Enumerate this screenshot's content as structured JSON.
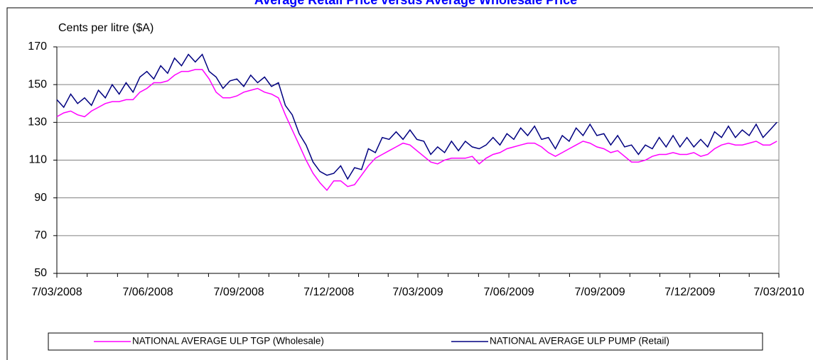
{
  "chart_data": {
    "type": "line",
    "title": "Average Retail Price versus Average Wholesale Price",
    "ylabel": "Cents per litre ($A)",
    "x": [
      "2008-03-07",
      "2008-03-14",
      "2008-03-21",
      "2008-03-28",
      "2008-04-04",
      "2008-04-11",
      "2008-04-18",
      "2008-04-25",
      "2008-05-02",
      "2008-05-09",
      "2008-05-16",
      "2008-05-23",
      "2008-05-30",
      "2008-06-06",
      "2008-06-13",
      "2008-06-20",
      "2008-06-27",
      "2008-07-04",
      "2008-07-11",
      "2008-07-18",
      "2008-07-25",
      "2008-08-01",
      "2008-08-08",
      "2008-08-15",
      "2008-08-22",
      "2008-08-29",
      "2008-09-05",
      "2008-09-12",
      "2008-09-19",
      "2008-09-26",
      "2008-10-03",
      "2008-10-10",
      "2008-10-17",
      "2008-10-24",
      "2008-10-31",
      "2008-11-07",
      "2008-11-14",
      "2008-11-21",
      "2008-11-28",
      "2008-12-05",
      "2008-12-12",
      "2008-12-19",
      "2008-12-26",
      "2009-01-02",
      "2009-01-09",
      "2009-01-16",
      "2009-01-23",
      "2009-01-30",
      "2009-02-06",
      "2009-02-13",
      "2009-02-20",
      "2009-02-27",
      "2009-03-06",
      "2009-03-13",
      "2009-03-20",
      "2009-03-27",
      "2009-04-03",
      "2009-04-10",
      "2009-04-17",
      "2009-04-24",
      "2009-05-01",
      "2009-05-08",
      "2009-05-15",
      "2009-05-22",
      "2009-05-29",
      "2009-06-05",
      "2009-06-12",
      "2009-06-19",
      "2009-06-26",
      "2009-07-03",
      "2009-07-10",
      "2009-07-17",
      "2009-07-24",
      "2009-07-31",
      "2009-08-07",
      "2009-08-14",
      "2009-08-21",
      "2009-08-28",
      "2009-09-04",
      "2009-09-11",
      "2009-09-18",
      "2009-09-25",
      "2009-10-02",
      "2009-10-09",
      "2009-10-16",
      "2009-10-23",
      "2009-10-30",
      "2009-11-06",
      "2009-11-13",
      "2009-11-20",
      "2009-11-27",
      "2009-12-04",
      "2009-12-11",
      "2009-12-18",
      "2009-12-25",
      "2010-01-01",
      "2010-01-08",
      "2010-01-15",
      "2010-01-22",
      "2010-01-29",
      "2010-02-05",
      "2010-02-12",
      "2010-02-19",
      "2010-02-26",
      "2010-03-05"
    ],
    "series": [
      {
        "name": "NATIONAL AVERAGE ULP TGP (Wholesale)",
        "color": "#ff00ff",
        "values": [
          133,
          135,
          136,
          134,
          133,
          136,
          138,
          140,
          141,
          141,
          142,
          142,
          146,
          148,
          151,
          151,
          152,
          155,
          157,
          157,
          158,
          158,
          153,
          146,
          143,
          143,
          144,
          146,
          147,
          148,
          146,
          145,
          143,
          134,
          126,
          118,
          110,
          103,
          98,
          94,
          99,
          99,
          96,
          97,
          102,
          107,
          111,
          113,
          115,
          117,
          119,
          118,
          115,
          112,
          109,
          108,
          110,
          111,
          111,
          111,
          112,
          108,
          111,
          113,
          114,
          116,
          117,
          118,
          119,
          119,
          117,
          114,
          112,
          114,
          116,
          118,
          120,
          119,
          117,
          116,
          114,
          115,
          112,
          109,
          109,
          110,
          112,
          113,
          113,
          114,
          113,
          113,
          114,
          112,
          113,
          116,
          118,
          119,
          118,
          118,
          119,
          120,
          118,
          118,
          120
        ]
      },
      {
        "name": "NATIONAL AVERAGE ULP PUMP (Retail)",
        "color": "#000080",
        "values": [
          142,
          138,
          145,
          140,
          143,
          139,
          147,
          143,
          150,
          145,
          151,
          146,
          154,
          157,
          153,
          160,
          156,
          164,
          160,
          166,
          162,
          166,
          157,
          154,
          148,
          152,
          153,
          149,
          155,
          151,
          154,
          149,
          151,
          139,
          134,
          124,
          118,
          109,
          104,
          102,
          103,
          107,
          100,
          106,
          105,
          116,
          114,
          122,
          121,
          125,
          121,
          126,
          121,
          120,
          113,
          117,
          114,
          120,
          115,
          120,
          117,
          116,
          118,
          122,
          118,
          124,
          121,
          127,
          123,
          128,
          121,
          122,
          116,
          123,
          120,
          127,
          123,
          129,
          123,
          124,
          118,
          123,
          117,
          118,
          113,
          118,
          116,
          122,
          117,
          123,
          117,
          122,
          117,
          121,
          117,
          125,
          122,
          128,
          122,
          126,
          123,
          129,
          122,
          126,
          130
        ]
      }
    ],
    "xlim": [
      "2008-03-07",
      "2010-03-07"
    ],
    "xticks": [
      {
        "value": "2008-03-07",
        "label": "7/03/2008"
      },
      {
        "value": "2008-06-07",
        "label": "7/06/2008"
      },
      {
        "value": "2008-09-07",
        "label": "7/09/2008"
      },
      {
        "value": "2008-12-07",
        "label": "7/12/2008"
      },
      {
        "value": "2009-03-07",
        "label": "7/03/2009"
      },
      {
        "value": "2009-06-07",
        "label": "7/06/2009"
      },
      {
        "value": "2009-09-07",
        "label": "7/09/2009"
      },
      {
        "value": "2009-12-07",
        "label": "7/12/2009"
      },
      {
        "value": "2010-03-07",
        "label": "7/03/2010"
      }
    ],
    "ylim": [
      50,
      170
    ],
    "yticks": [
      50,
      70,
      90,
      110,
      130,
      150,
      170
    ],
    "grid": true,
    "legend": "bottom"
  }
}
